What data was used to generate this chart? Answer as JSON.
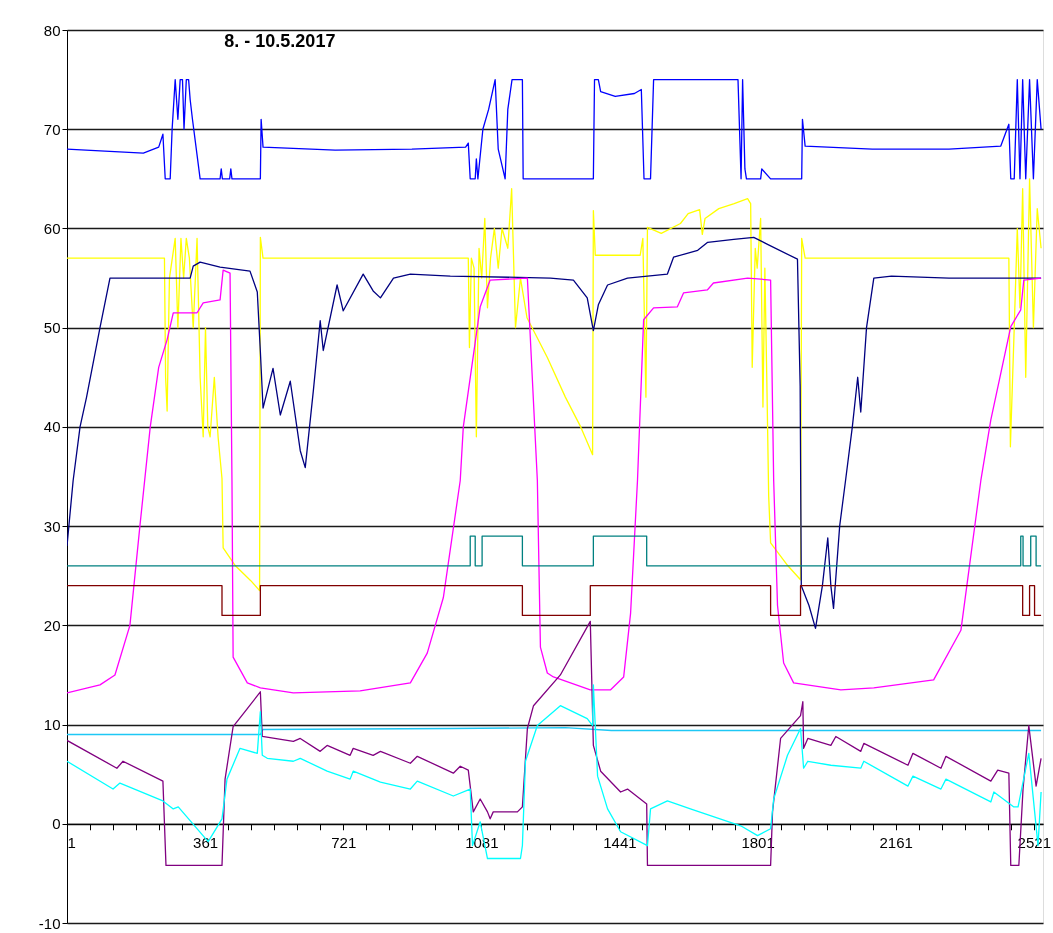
{
  "chart_data": {
    "type": "line",
    "title": "8. - 10.5.2017",
    "xlim": [
      1,
      2545
    ],
    "ylim": [
      -10,
      80
    ],
    "yticks": [
      -10,
      0,
      10,
      20,
      30,
      40,
      50,
      60,
      70,
      80
    ],
    "xticks": [
      1,
      {
        "value": 61,
        "label": null
      },
      {
        "value": 121,
        "label": null
      },
      {
        "value": 181,
        "label": null
      },
      {
        "value": 241,
        "label": null
      },
      {
        "value": 301,
        "label": null
      },
      361,
      {
        "value": 421,
        "label": null
      },
      {
        "value": 481,
        "label": null
      },
      {
        "value": 541,
        "label": null
      },
      {
        "value": 601,
        "label": null
      },
      {
        "value": 661,
        "label": null
      },
      721,
      {
        "value": 781,
        "label": null
      },
      {
        "value": 841,
        "label": null
      },
      {
        "value": 901,
        "label": null
      },
      {
        "value": 961,
        "label": null
      },
      {
        "value": 1021,
        "label": null
      },
      1081,
      {
        "value": 1141,
        "label": null
      },
      {
        "value": 1201,
        "label": null
      },
      {
        "value": 1261,
        "label": null
      },
      {
        "value": 1321,
        "label": null
      },
      {
        "value": 1381,
        "label": null
      },
      1441,
      {
        "value": 1501,
        "label": null
      },
      {
        "value": 1561,
        "label": null
      },
      {
        "value": 1621,
        "label": null
      },
      {
        "value": 1681,
        "label": null
      },
      {
        "value": 1741,
        "label": null
      },
      1801,
      {
        "value": 1861,
        "label": null
      },
      {
        "value": 1921,
        "label": null
      },
      {
        "value": 1981,
        "label": null
      },
      {
        "value": 2041,
        "label": null
      },
      {
        "value": 2101,
        "label": null
      },
      2161,
      {
        "value": 2221,
        "label": null
      },
      {
        "value": 2281,
        "label": null
      },
      {
        "value": 2341,
        "label": null
      },
      {
        "value": 2401,
        "label": null
      },
      {
        "value": 2461,
        "label": null
      },
      2521
    ],
    "grid": "y",
    "line_style": "solid",
    "series": [
      {
        "color": "#0000ff",
        "x": [
          1,
          100,
          200,
          240,
          251,
          257,
          270,
          275,
          283,
          290,
          296,
          302,
          306,
          312,
          318,
          322,
          328,
          348,
          400,
          403,
          406,
          425,
          428,
          431,
          505,
          507,
          512,
          700,
          900,
          1040,
          1047,
          1052,
          1065,
          1068,
          1072,
          1085,
          1100,
          1117,
          1125,
          1143,
          1150,
          1161,
          1188,
          1190,
          1373,
          1376,
          1386,
          1392,
          1430,
          1480,
          1498,
          1505,
          1522,
          1530,
          1750,
          1758,
          1762,
          1768,
          1772,
          1809,
          1812,
          1835,
          1916,
          1918,
          1925,
          2100,
          2300,
          2435,
          2456,
          2461,
          2470,
          2478,
          2485,
          2492,
          2500,
          2510,
          2520,
          2530,
          2540
        ],
        "values": [
          68,
          67.8,
          67.6,
          68.2,
          69.5,
          65,
          65,
          70,
          75,
          71,
          75,
          75,
          70,
          75,
          75,
          73,
          71,
          65,
          65,
          66,
          65,
          65,
          66,
          65,
          65,
          71,
          68.2,
          67.9,
          68,
          68.2,
          68.6,
          65,
          65,
          67,
          65,
          70,
          72,
          75,
          68,
          65,
          72,
          75,
          75,
          65,
          65,
          75,
          75,
          73.8,
          73.3,
          73.6,
          74,
          65,
          65,
          75,
          75,
          65,
          75,
          66,
          65,
          65,
          66,
          65,
          65,
          71,
          68.3,
          68,
          68,
          68.3,
          70.5,
          65,
          65,
          75,
          65,
          75,
          65,
          75,
          65,
          75,
          70
        ]
      },
      {
        "color": "#ffff00",
        "x": [
          1,
          100,
          200,
          255,
          258,
          262,
          268,
          283,
          290,
          298,
          305,
          312,
          320,
          330,
          340,
          348,
          356,
          362,
          368,
          374,
          385,
          395,
          405,
          408,
          440,
          480,
          503,
          505,
          512,
          700,
          900,
          1047,
          1050,
          1055,
          1062,
          1068,
          1075,
          1082,
          1090,
          1097,
          1105,
          1115,
          1125,
          1135,
          1150,
          1160,
          1170,
          1183,
          1200,
          1253,
          1300,
          1340,
          1371,
          1373,
          1378,
          1440,
          1495,
          1502,
          1510,
          1514,
          1550,
          1600,
          1620,
          1650,
          1657,
          1664,
          1700,
          1740,
          1775,
          1783,
          1787,
          1795,
          1800,
          1809,
          1815,
          1820,
          1825,
          1830,
          1835,
          1880,
          1913,
          1916,
          1925,
          2100,
          2300,
          2456,
          2460,
          2470,
          2478,
          2485,
          2492,
          2500,
          2510,
          2520,
          2530,
          2540
        ],
        "values": [
          57,
          57,
          57,
          57,
          45,
          41.6,
          55,
          59,
          50,
          59,
          55,
          59,
          57,
          50,
          59,
          45,
          39,
          50,
          40,
          39,
          45,
          38.9,
          34.8,
          27.8,
          26,
          24.5,
          23.5,
          59.1,
          57,
          57,
          57,
          57,
          48,
          57,
          56,
          39,
          58,
          55,
          61,
          52,
          57,
          60,
          56,
          60,
          58,
          64,
          50,
          55,
          51,
          47,
          43,
          40,
          37.2,
          61.8,
          57.3,
          57.3,
          57.3,
          59,
          43,
          60.1,
          59.5,
          60.5,
          61.5,
          61.9,
          59.4,
          61,
          62,
          62.5,
          63,
          62.5,
          46,
          58,
          56,
          61,
          42,
          56,
          45,
          33,
          28.3,
          26,
          24.6,
          59,
          57,
          57,
          57,
          57,
          38,
          50,
          60,
          52,
          64,
          45,
          65,
          50,
          62,
          58
        ]
      },
      {
        "color": "#000080",
        "x": [
          1,
          17,
          35,
          52,
          87,
          113,
          200,
          322,
          330,
          348,
          400,
          478,
          497,
          505,
          512,
          538,
          557,
          583,
          609,
          622,
          643,
          661,
          669,
          705,
          721,
          773,
          799,
          818,
          852,
          896,
          1000,
          1261,
          1321,
          1357,
          1373,
          1386,
          1410,
          1462,
          1566,
          1582,
          1645,
          1671,
          1739,
          1791,
          1827,
          1905,
          1912,
          1915,
          1935,
          1952,
          1970,
          1984,
          1992,
          1999,
          2015,
          2031,
          2048,
          2062,
          2070,
          2085,
          2104,
          2150,
          2300,
          2450,
          2540
        ],
        "values": [
          28,
          34.6,
          40,
          43,
          50,
          55,
          55,
          55,
          56.2,
          56.6,
          56.1,
          55.7,
          53.6,
          47.6,
          41.9,
          45.9,
          41.2,
          44.6,
          37.6,
          35.9,
          43.6,
          50.7,
          47.7,
          54.3,
          51.7,
          55.4,
          53.7,
          53,
          55,
          55.4,
          55.2,
          55,
          54.8,
          53,
          49.7,
          52.3,
          54.3,
          55,
          55.4,
          57.1,
          57.8,
          58.6,
          58.9,
          59.1,
          58.4,
          56.9,
          44.1,
          24,
          22,
          19.7,
          24,
          28.8,
          24,
          21.7,
          30,
          34.8,
          40,
          45,
          41.5,
          50,
          55,
          55.2,
          55,
          55,
          55
        ]
      },
      {
        "color": "#ff00ff",
        "x": [
          1,
          87,
          126,
          165,
          191,
          218,
          240,
          262,
          278,
          340,
          356,
          400,
          408,
          426,
          431,
          434,
          471,
          505,
          591,
          765,
          896,
          940,
          982,
          1026,
          1034,
          1078,
          1104,
          1201,
          1227,
          1235,
          1253,
          1269,
          1365,
          1418,
          1452,
          1470,
          1488,
          1504,
          1530,
          1592,
          1608,
          1670,
          1686,
          1775,
          1835,
          1843,
          1853,
          1869,
          1895,
          2018,
          2104,
          2260,
          2331,
          2383,
          2409,
          2461,
          2487,
          2495,
          2540
        ],
        "values": [
          13.2,
          14,
          15,
          20,
          30,
          40,
          46,
          48.8,
          51.5,
          51.5,
          52.5,
          52.8,
          55.8,
          55.5,
          34.6,
          16.8,
          14.2,
          13.7,
          13.2,
          13.4,
          14.2,
          17.2,
          22.8,
          34.6,
          40,
          52.1,
          54.8,
          55,
          34.6,
          17.8,
          15.2,
          14.8,
          13.5,
          13.5,
          14.8,
          21.2,
          34.6,
          50.8,
          52,
          52.1,
          53.5,
          53.8,
          54.5,
          55,
          54.8,
          34.6,
          22,
          16.2,
          14.2,
          13.5,
          13.7,
          14.5,
          19.5,
          34.6,
          40.7,
          50.1,
          51.8,
          54.8,
          55
        ]
      },
      {
        "color": "#008080",
        "x": [
          1,
          1052,
          1052,
          1065,
          1065,
          1083,
          1083,
          1188,
          1188,
          1373,
          1373,
          1512,
          1512,
          2487,
          2487,
          2493,
          2493,
          2513,
          2513,
          2527,
          2527,
          2540
        ],
        "values": [
          26,
          26,
          29,
          29,
          26,
          26,
          29,
          29,
          26,
          26,
          29,
          29,
          26,
          26,
          29,
          29,
          26,
          26,
          29,
          29,
          26,
          26
        ]
      },
      {
        "color": "#800000",
        "x": [
          1,
          405,
          405,
          505,
          505,
          1188,
          1188,
          1365,
          1365,
          1835,
          1835,
          1913,
          1913,
          2492,
          2492,
          2510,
          2510,
          2523,
          2523,
          2540
        ],
        "values": [
          24,
          24,
          21,
          21,
          24,
          24,
          21,
          21,
          24,
          24,
          21,
          21,
          24,
          24,
          21,
          21,
          24,
          24,
          21,
          21
        ]
      },
      {
        "color": "#1ec8f5",
        "x": [
          1,
          505,
          512,
          1000,
          1300,
          1420,
          2000,
          2540
        ],
        "values": [
          9,
          9,
          9.5,
          9.6,
          9.7,
          9.4,
          9.4,
          9.4
        ]
      },
      {
        "color": "#800080",
        "x": [
          1,
          131,
          147,
          251,
          259,
          405,
          413,
          434,
          471,
          505,
          510,
          591,
          609,
          661,
          679,
          739,
          747,
          799,
          818,
          896,
          914,
          1008,
          1026,
          1047,
          1060,
          1078,
          1097,
          1104,
          1112,
          1175,
          1188,
          1201,
          1217,
          1287,
          1365,
          1373,
          1392,
          1444,
          1462,
          1512,
          1514,
          1835,
          1840,
          1861,
          1913,
          1919,
          1921,
          1932,
          1992,
          2005,
          2070,
          2078,
          2193,
          2206,
          2279,
          2292,
          2409,
          2427,
          2456,
          2461,
          2482,
          2493,
          2508,
          2527,
          2540
        ],
        "values": [
          8.4,
          5.6,
          6.3,
          4.3,
          -4.2,
          -4.2,
          4.5,
          9.8,
          11.6,
          13.3,
          8.8,
          8.3,
          8.6,
          7.3,
          7.9,
          6.9,
          7.6,
          6.9,
          7.3,
          6.1,
          6.8,
          5.1,
          5.8,
          5.4,
          1.2,
          2.5,
          1.2,
          0.5,
          1.2,
          1.2,
          1.7,
          9.6,
          11.9,
          15,
          20.4,
          7.9,
          5.3,
          3.2,
          3.5,
          2,
          -4.2,
          -4.2,
          1.2,
          8.6,
          10.9,
          12.3,
          7.6,
          8.6,
          7.9,
          8.8,
          7.3,
          8.1,
          5.9,
          7.1,
          5.6,
          6.8,
          4.3,
          5.4,
          5.1,
          -4.2,
          -4.2,
          3.5,
          9.9,
          3.8,
          6.6
        ]
      },
      {
        "color": "#00ffff",
        "x": [
          1,
          121,
          139,
          251,
          278,
          291,
          369,
          405,
          418,
          452,
          497,
          505,
          510,
          523,
          591,
          609,
          679,
          739,
          747,
          818,
          896,
          914,
          1008,
          1052,
          1058,
          1078,
          1097,
          1183,
          1188,
          1196,
          1227,
          1287,
          1357,
          1371,
          1373,
          1384,
          1410,
          1444,
          1514,
          1522,
          1566,
          1626,
          1757,
          1801,
          1835,
          1843,
          1879,
          1913,
          1921,
          1932,
          1992,
          2070,
          2078,
          2193,
          2206,
          2279,
          2292,
          2409,
          2417,
          2469,
          2480,
          2508,
          2532,
          2540
        ],
        "values": [
          6.3,
          3.5,
          4.1,
          2.3,
          1.5,
          1.7,
          -1.8,
          0.5,
          4.5,
          7.6,
          7.1,
          11.3,
          6.9,
          6.6,
          6.3,
          6.6,
          5.3,
          4.5,
          5.3,
          4.2,
          3.5,
          4.3,
          2.8,
          3.5,
          -2.2,
          0.2,
          -3.5,
          -3.5,
          -2.2,
          6.3,
          9.9,
          11.9,
          10.6,
          9.9,
          14,
          4.8,
          1.5,
          -0.8,
          -2.2,
          1.5,
          2.3,
          1.5,
          -0.2,
          -1.2,
          -0.5,
          2.5,
          6.9,
          9.6,
          5.6,
          6.3,
          5.9,
          5.6,
          6.3,
          3.8,
          4.8,
          3.5,
          4.5,
          2.2,
          3.2,
          1.7,
          1.7,
          7.1,
          -2.2,
          3.2
        ]
      }
    ]
  }
}
